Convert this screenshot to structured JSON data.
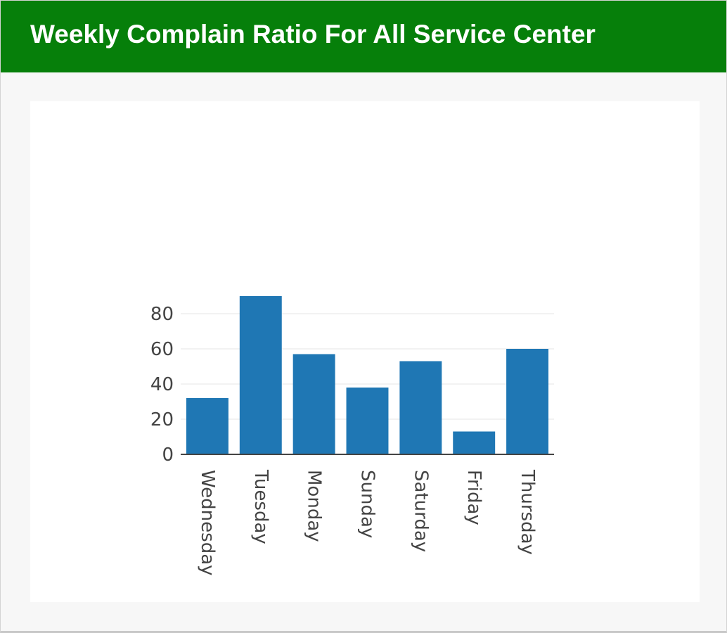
{
  "header": {
    "title": "Weekly Complain Ratio For All Service Center"
  },
  "colors": {
    "header_bg": "#067f0a",
    "bar": "#1f77b4",
    "grid": "#eeeeee",
    "axis": "#444444"
  },
  "chart_data": {
    "type": "bar",
    "title": "",
    "xlabel": "",
    "ylabel": "",
    "categories": [
      "Wednesday",
      "Tuesday",
      "Monday",
      "Sunday",
      "Saturday",
      "Friday",
      "Thursday"
    ],
    "values": [
      32,
      90,
      57,
      38,
      53,
      13,
      60
    ],
    "yticks": [
      0,
      20,
      40,
      60,
      80
    ],
    "ylim": [
      0,
      90
    ],
    "grid": true,
    "legend": false
  }
}
